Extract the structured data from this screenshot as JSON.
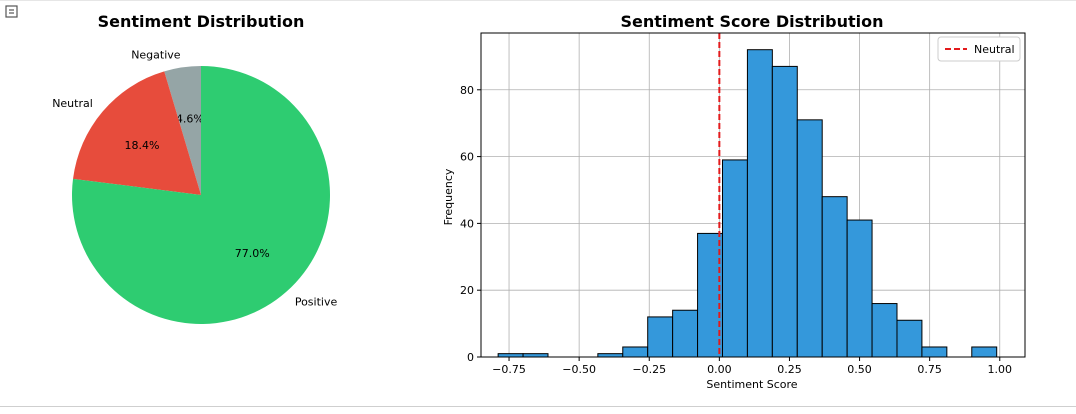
{
  "chart_data": [
    {
      "type": "pie",
      "title": "Sentiment Distribution",
      "slices": [
        {
          "label": "Negative",
          "pct": 4.6,
          "pct_label": "4.6%",
          "color": "#95a5a6"
        },
        {
          "label": "Neutral",
          "pct": 18.4,
          "pct_label": "18.4%",
          "color": "#e74c3c"
        },
        {
          "label": "Positive",
          "pct": 77.0,
          "pct_label": "77.0%",
          "color": "#2ecc71"
        }
      ]
    },
    {
      "type": "bar",
      "subtype": "histogram",
      "title": "Sentiment Score Distribution",
      "xlabel": "Sentiment Score",
      "ylabel": "Frequency",
      "xlim": [
        -0.85,
        1.09
      ],
      "ylim": [
        0,
        97
      ],
      "grid": true,
      "bar_color": "#3498db",
      "bin_width": 0.0889,
      "bin_start": -0.7889,
      "counts": [
        1,
        1,
        0,
        0,
        1,
        3,
        12,
        14,
        37,
        59,
        92,
        87,
        71,
        48,
        41,
        16,
        11,
        3,
        0,
        3
      ],
      "x_ticks": [
        {
          "value": -0.75,
          "label": "−0.75"
        },
        {
          "value": -0.5,
          "label": "−0.50"
        },
        {
          "value": -0.25,
          "label": "−0.25"
        },
        {
          "value": 0.0,
          "label": "0.00"
        },
        {
          "value": 0.25,
          "label": "0.25"
        },
        {
          "value": 0.5,
          "label": "0.50"
        },
        {
          "value": 0.75,
          "label": "0.75"
        },
        {
          "value": 1.0,
          "label": "1.00"
        }
      ],
      "y_ticks": [
        {
          "value": 0,
          "label": "0"
        },
        {
          "value": 20,
          "label": "20"
        },
        {
          "value": 40,
          "label": "40"
        },
        {
          "value": 60,
          "label": "60"
        },
        {
          "value": 80,
          "label": "80"
        }
      ],
      "vline": {
        "x": 0.0,
        "label": "Neutral",
        "color": "#e31a1c",
        "style": "dashed"
      },
      "legend": {
        "position": "top-right",
        "entries": [
          "Neutral"
        ]
      }
    }
  ]
}
